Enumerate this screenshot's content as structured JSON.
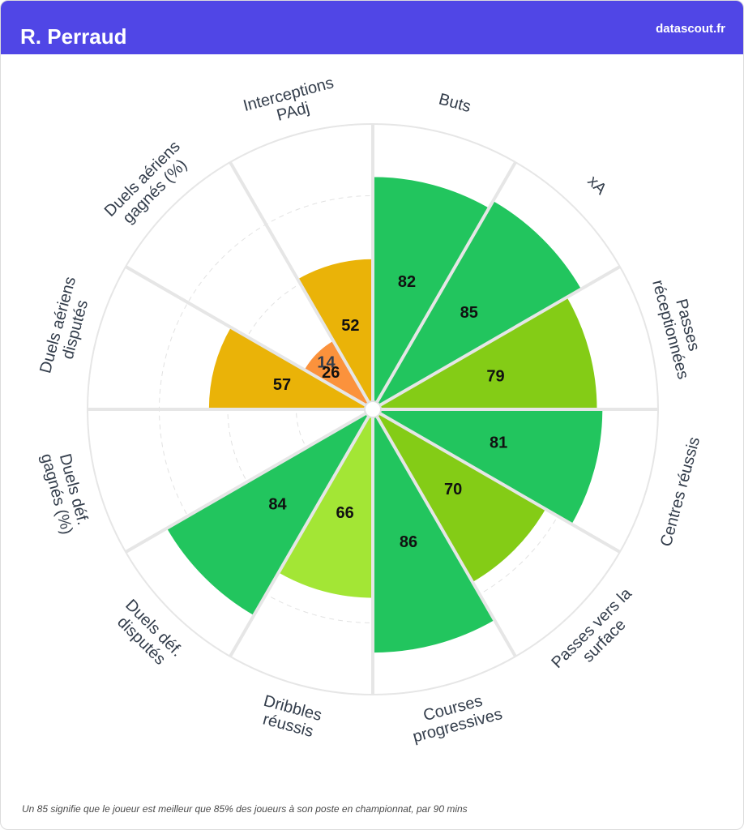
{
  "header": {
    "title": "R. Perraud",
    "brand": "datascout.fr"
  },
  "footnote": "Un 85 signifie que le joueur est meilleur que 85% des joueurs à son poste en championnat, par 90 mins",
  "colors": {
    "header_bg": "#5046e6",
    "very_good": "#22c55e",
    "good": "#84cc16",
    "above_avg": "#a3e635",
    "average": "#eab308",
    "below_avg": "#fb923c",
    "poor": "#ef4444"
  },
  "chart_data": {
    "type": "radar-bar",
    "scale": [
      0,
      100
    ],
    "categories": [
      "Buts",
      "xA",
      "Passes réceptionnées",
      "Centres réussis",
      "Passes vers la surface",
      "Courses progressives",
      "Dribbles réussis",
      "Duels déf. disputés",
      "Duels déf. gagnés (%)",
      "Duels aériens disputés",
      "Duels aériens gagnés (%)",
      "Interceptions PAdj"
    ],
    "label_lines": [
      [
        "Buts"
      ],
      [
        "xA"
      ],
      [
        "Passes",
        "réceptionnées"
      ],
      [
        "Centres réussis"
      ],
      [
        "Passes vers la",
        "surface"
      ],
      [
        "Courses",
        "progressives"
      ],
      [
        "Dribbles",
        "réussis"
      ],
      [
        "Duels déf.",
        "disputés"
      ],
      [
        "Duels déf.",
        "gagnés (%)"
      ],
      [
        "Duels aériens",
        "disputés"
      ],
      [
        "Duels aériens",
        "gagnés (%)"
      ],
      [
        "Interceptions",
        "PAdj"
      ]
    ],
    "values": [
      82,
      85,
      79,
      81,
      70,
      86,
      66,
      84,
      0,
      57,
      14,
      52
    ],
    "value_labels": [
      "82",
      "85",
      "79",
      "81",
      "70",
      "86",
      "66",
      "84",
      "",
      "57",
      "14",
      "52"
    ],
    "extra_inner": {
      "category": "Duels aériens gagnés (%)",
      "value": 26,
      "label": "26"
    },
    "bar_colors": [
      "#22c55e",
      "#22c55e",
      "#84cc16",
      "#22c55e",
      "#84cc16",
      "#22c55e",
      "#a3e635",
      "#22c55e",
      "#22c55e",
      "#eab308",
      "#ef4444",
      "#eab308"
    ]
  }
}
